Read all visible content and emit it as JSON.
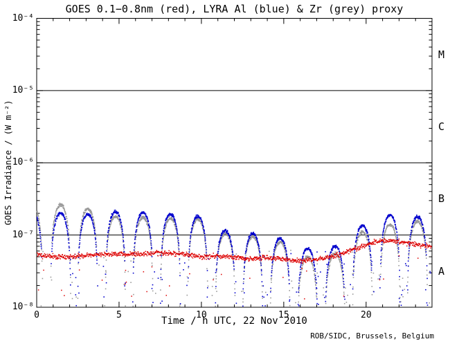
{
  "figure": {
    "title": "GOES 0.1−0.8nm (red), LYRA Al (blue) & Zr (grey) proxy",
    "xlabel": "Time / h UTC, 22 Nov 2010",
    "ylabel": "GOES Irradiance / (W m⁻²)",
    "credit": "ROB/SIDC, Brussels, Belgium"
  },
  "colors": {
    "background": "#ffffff",
    "frame": "#000000",
    "goes_red": "#dd0000",
    "lyra_al_blue": "#0000cc",
    "lyra_zr_grey": "#999999"
  },
  "chart_data": {
    "type": "scatter",
    "title": "GOES 0.1−0.8nm (red), LYRA Al (blue) & Zr (grey) proxy",
    "xlabel": "Time / h UTC, 22 Nov 2010",
    "ylabel": "GOES Irradiance / (W m⁻²)",
    "credit": "ROB/SIDC, Brussels, Belgium",
    "x_range_hours": [
      0,
      24
    ],
    "x_major_ticks": [
      0,
      5,
      10,
      15,
      20
    ],
    "x_tick_labels": [
      "0",
      "5",
      "10",
      "15",
      "20"
    ],
    "x_minor_step_hours": 1,
    "y_scale": "log",
    "y_range_wm2": [
      1e-08,
      0.0001
    ],
    "y_tick_exponents": [
      -8,
      -7,
      -6,
      -5,
      -4
    ],
    "y_tick_labels": [
      "10⁻⁸",
      "10⁻⁷",
      "10⁻⁶",
      "10⁻⁵",
      "10⁻⁴"
    ],
    "grid": "off",
    "legend": "in title (colors named)",
    "flare_class_lines_wm2": [
      1e-07,
      1e-06,
      1e-05
    ],
    "flare_classes": [
      {
        "label": "A",
        "log10_center": -7.5
      },
      {
        "label": "B",
        "log10_center": -6.5
      },
      {
        "label": "C",
        "log10_center": -5.5
      },
      {
        "label": "M",
        "log10_center": -4.5
      }
    ],
    "orbit_period_hours": 1.667,
    "arc_halfwidth_hours": 0.62,
    "series": [
      {
        "name": "LYRA Zr proxy",
        "color": "#999999",
        "style": "orbit-arcs",
        "arc_peak_hours": [
          -0.25,
          1.45,
          3.1,
          4.78,
          6.45,
          8.12,
          9.78,
          11.45,
          13.12,
          14.78,
          16.45,
          18.12,
          19.78,
          21.45,
          23.12
        ],
        "arc_peaks_wm2": [
          2.6e-07,
          2.6e-07,
          2.3e-07,
          1.8e-07,
          1.75e-07,
          1.7e-07,
          1.65e-07,
          1.05e-07,
          9.5e-08,
          8e-08,
          5e-08,
          5.5e-08,
          1.1e-07,
          1.4e-07,
          1.55e-07
        ]
      },
      {
        "name": "LYRA Al proxy",
        "color": "#0000cc",
        "style": "orbit-arcs",
        "arc_peak_hours": [
          -0.25,
          1.45,
          3.1,
          4.78,
          6.45,
          8.12,
          9.78,
          11.45,
          13.12,
          14.78,
          16.45,
          18.12,
          19.78,
          21.45,
          23.12
        ],
        "arc_peaks_wm2": [
          2.1e-07,
          2e-07,
          1.95e-07,
          2.1e-07,
          2.05e-07,
          1.95e-07,
          1.8e-07,
          1.15e-07,
          1.05e-07,
          9e-08,
          6.5e-08,
          7e-08,
          1.35e-07,
          1.9e-07,
          1.8e-07
        ]
      },
      {
        "name": "GOES 0.1-0.8nm",
        "color": "#dd0000",
        "style": "noisy-band",
        "sample_hours": [
          0,
          1,
          2,
          3,
          4,
          5,
          6,
          7,
          8,
          9,
          10,
          11,
          12,
          13,
          14,
          15,
          16,
          17,
          18,
          19,
          20,
          20.5,
          21,
          21.5,
          22,
          22.5,
          23,
          23.5,
          24
        ],
        "values_wm2": [
          5.3e-08,
          5e-08,
          5e-08,
          5.2e-08,
          5.4e-08,
          5.5e-08,
          5.4e-08,
          5.6e-08,
          5.6e-08,
          5.4e-08,
          5e-08,
          5.1e-08,
          4.9e-08,
          4.7e-08,
          4.9e-08,
          4.6e-08,
          4.4e-08,
          4.6e-08,
          5e-08,
          6e-08,
          7.3e-08,
          8e-08,
          8.3e-08,
          8.3e-08,
          8e-08,
          7.7e-08,
          7.4e-08,
          7.1e-08,
          6.9e-08
        ]
      }
    ]
  }
}
